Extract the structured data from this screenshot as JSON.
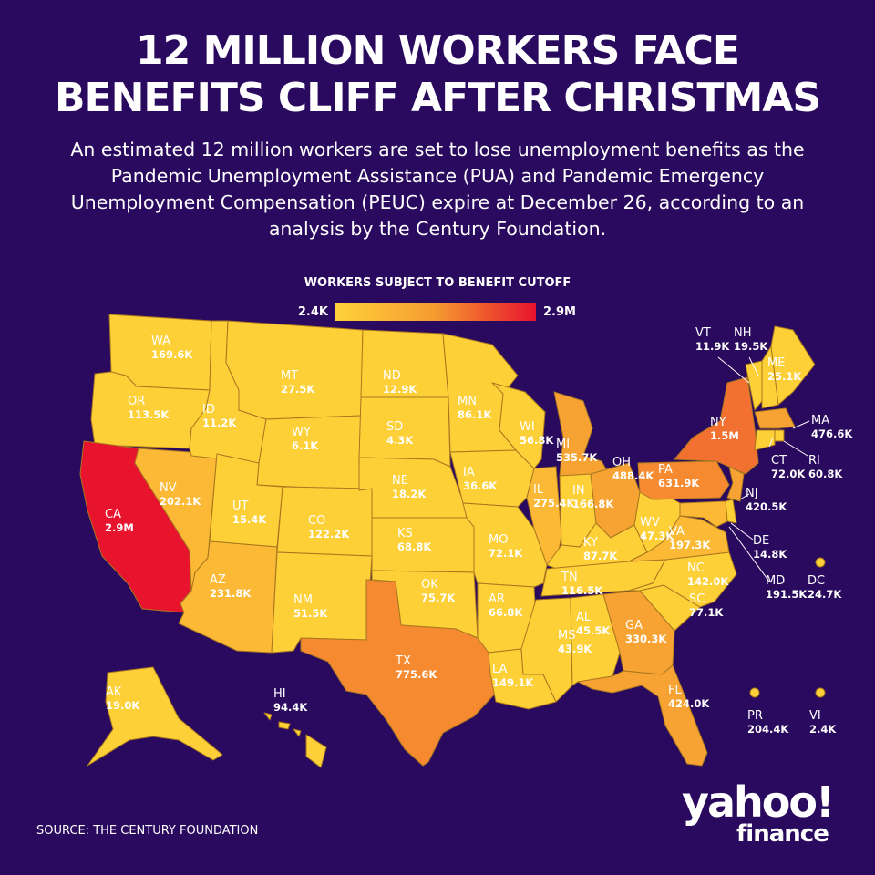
{
  "title": {
    "line1": "12 MILLION WORKERS FACE",
    "line2": "BENEFITS CLIFF AFTER CHRISTMAS"
  },
  "subtitle": "An estimated 12 million workers are set to lose unemployment benefits as the Pandemic Unemployment Assistance (PUA) and Pandemic Emergency Unemployment Compensation (PEUC) expire at December 26, according to an analysis by the Century Foundation.",
  "legend": {
    "title": "WORKERS SUBJECT TO BENEFIT CUTOFF",
    "min_label": "2.4K",
    "max_label": "2.9M",
    "color_low": "#fed23a",
    "color_mid": "#f59a30",
    "color_high": "#e8132d"
  },
  "colors": {
    "background": "#2a0a5e",
    "state_border": "#a8771f",
    "level_1": "#fdd038",
    "level_2": "#fbb936",
    "level_3": "#f7a333",
    "level_4": "#f58a31",
    "level_5": "#f27130",
    "level_6": "#e8132d"
  },
  "states": [
    {
      "abbr": "WA",
      "value": "169.6K"
    },
    {
      "abbr": "OR",
      "value": "113.5K"
    },
    {
      "abbr": "CA",
      "value": "2.9M"
    },
    {
      "abbr": "NV",
      "value": "202.1K"
    },
    {
      "abbr": "ID",
      "value": "11.2K"
    },
    {
      "abbr": "MT",
      "value": "27.5K"
    },
    {
      "abbr": "WY",
      "value": "6.1K"
    },
    {
      "abbr": "UT",
      "value": "15.4K"
    },
    {
      "abbr": "AZ",
      "value": "231.8K"
    },
    {
      "abbr": "CO",
      "value": "122.2K"
    },
    {
      "abbr": "NM",
      "value": "51.5K"
    },
    {
      "abbr": "ND",
      "value": "12.9K"
    },
    {
      "abbr": "SD",
      "value": "4.3K"
    },
    {
      "abbr": "NE",
      "value": "18.2K"
    },
    {
      "abbr": "KS",
      "value": "68.8K"
    },
    {
      "abbr": "OK",
      "value": "75.7K"
    },
    {
      "abbr": "TX",
      "value": "775.6K"
    },
    {
      "abbr": "MN",
      "value": "86.1K"
    },
    {
      "abbr": "IA",
      "value": "36.6K"
    },
    {
      "abbr": "MO",
      "value": "72.1K"
    },
    {
      "abbr": "AR",
      "value": "66.8K"
    },
    {
      "abbr": "LA",
      "value": "149.1K"
    },
    {
      "abbr": "WI",
      "value": "56.8K"
    },
    {
      "abbr": "IL",
      "value": "275.4K"
    },
    {
      "abbr": "MI",
      "value": "535.7K"
    },
    {
      "abbr": "IN",
      "value": "166.8K"
    },
    {
      "abbr": "OH",
      "value": "488.4K"
    },
    {
      "abbr": "KY",
      "value": "87.7K"
    },
    {
      "abbr": "TN",
      "value": "116.5K"
    },
    {
      "abbr": "MS",
      "value": "43.9K"
    },
    {
      "abbr": "AL",
      "value": "45.5K"
    },
    {
      "abbr": "GA",
      "value": "330.3K"
    },
    {
      "abbr": "FL",
      "value": "424.0K"
    },
    {
      "abbr": "SC",
      "value": "77.1K"
    },
    {
      "abbr": "NC",
      "value": "142.0K"
    },
    {
      "abbr": "VA",
      "value": "197.3K"
    },
    {
      "abbr": "WV",
      "value": "47.3K"
    },
    {
      "abbr": "PA",
      "value": "631.9K"
    },
    {
      "abbr": "NY",
      "value": "1.5M"
    },
    {
      "abbr": "VT",
      "value": "11.9K"
    },
    {
      "abbr": "NH",
      "value": "19.5K"
    },
    {
      "abbr": "ME",
      "value": "25.1K"
    },
    {
      "abbr": "MA",
      "value": "476.6K"
    },
    {
      "abbr": "RI",
      "value": "60.8K"
    },
    {
      "abbr": "CT",
      "value": "72.0K"
    },
    {
      "abbr": "NJ",
      "value": "420.5K"
    },
    {
      "abbr": "DE",
      "value": "14.8K"
    },
    {
      "abbr": "MD",
      "value": "191.5K"
    },
    {
      "abbr": "DC",
      "value": "24.7K"
    },
    {
      "abbr": "AK",
      "value": "19.0K"
    },
    {
      "abbr": "HI",
      "value": "94.4K"
    },
    {
      "abbr": "PR",
      "value": "204.4K"
    },
    {
      "abbr": "VI",
      "value": "2.4K"
    }
  ],
  "source": "SOURCE:  THE CENTURY FOUNDATION",
  "logo": {
    "line1": "yahoo!",
    "line2": "finance"
  }
}
